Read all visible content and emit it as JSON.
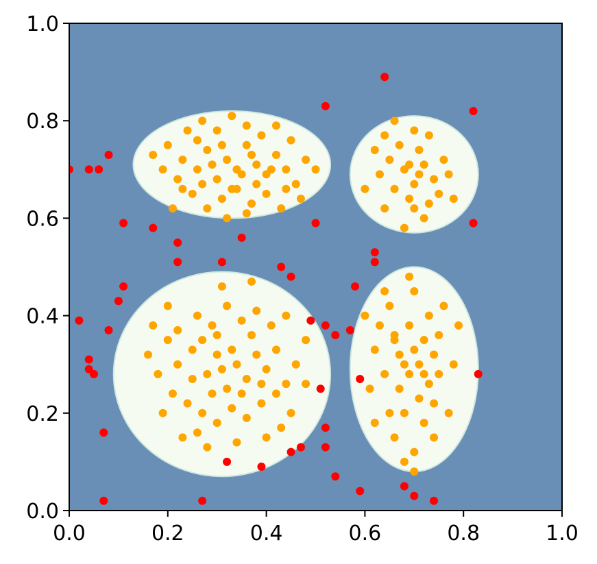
{
  "chart_data": {
    "type": "scatter",
    "xlim": [
      0.0,
      1.0
    ],
    "ylim": [
      0.0,
      1.0
    ],
    "grid": false,
    "x_ticks": [
      "0.0",
      "0.2",
      "0.4",
      "0.6",
      "0.8",
      "1.0"
    ],
    "y_ticks": [
      "0.0",
      "0.2",
      "0.4",
      "0.6",
      "0.8",
      "1.0"
    ],
    "colors": {
      "background_region": "#6a8fb6",
      "decision_region": "#f5fbf0",
      "inlier_points": "#ffa500",
      "outlier_points": "#ff0000"
    },
    "regions": [
      {
        "name": "top-left-cluster-region",
        "center": [
          0.33,
          0.71
        ],
        "radius": [
          0.2,
          0.11
        ]
      },
      {
        "name": "top-right-cluster-region",
        "center": [
          0.7,
          0.69
        ],
        "radius": [
          0.13,
          0.12
        ]
      },
      {
        "name": "bottom-left-cluster-region",
        "center": [
          0.31,
          0.28
        ],
        "radius": [
          0.22,
          0.21
        ]
      },
      {
        "name": "bottom-right-cluster-region",
        "center": [
          0.7,
          0.29
        ],
        "radius": [
          0.13,
          0.21
        ]
      }
    ],
    "series": [
      {
        "role": "inliers",
        "points": [
          [
            0.2,
            0.75
          ],
          [
            0.23,
            0.72
          ],
          [
            0.26,
            0.7
          ],
          [
            0.28,
            0.74
          ],
          [
            0.3,
            0.68
          ],
          [
            0.32,
            0.72
          ],
          [
            0.34,
            0.7
          ],
          [
            0.36,
            0.75
          ],
          [
            0.38,
            0.71
          ],
          [
            0.4,
            0.69
          ],
          [
            0.42,
            0.73
          ],
          [
            0.44,
            0.7
          ],
          [
            0.46,
            0.67
          ],
          [
            0.48,
            0.72
          ],
          [
            0.25,
            0.65
          ],
          [
            0.28,
            0.62
          ],
          [
            0.31,
            0.64
          ],
          [
            0.34,
            0.66
          ],
          [
            0.37,
            0.63
          ],
          [
            0.4,
            0.65
          ],
          [
            0.43,
            0.62
          ],
          [
            0.22,
            0.68
          ],
          [
            0.19,
            0.7
          ],
          [
            0.24,
            0.78
          ],
          [
            0.27,
            0.8
          ],
          [
            0.3,
            0.78
          ],
          [
            0.33,
            0.81
          ],
          [
            0.36,
            0.79
          ],
          [
            0.39,
            0.77
          ],
          [
            0.42,
            0.79
          ],
          [
            0.45,
            0.76
          ],
          [
            0.17,
            0.73
          ],
          [
            0.29,
            0.71
          ],
          [
            0.35,
            0.69
          ],
          [
            0.31,
            0.75
          ],
          [
            0.26,
            0.76
          ],
          [
            0.33,
            0.66
          ],
          [
            0.27,
            0.67
          ],
          [
            0.38,
            0.67
          ],
          [
            0.41,
            0.7
          ],
          [
            0.21,
            0.62
          ],
          [
            0.36,
            0.61
          ],
          [
            0.47,
            0.64
          ],
          [
            0.32,
            0.6
          ],
          [
            0.5,
            0.7
          ],
          [
            0.44,
            0.66
          ],
          [
            0.23,
            0.66
          ],
          [
            0.37,
            0.73
          ],
          [
            0.65,
            0.72
          ],
          [
            0.68,
            0.7
          ],
          [
            0.7,
            0.67
          ],
          [
            0.72,
            0.71
          ],
          [
            0.74,
            0.68
          ],
          [
            0.67,
            0.75
          ],
          [
            0.71,
            0.74
          ],
          [
            0.69,
            0.64
          ],
          [
            0.73,
            0.63
          ],
          [
            0.66,
            0.66
          ],
          [
            0.63,
            0.69
          ],
          [
            0.76,
            0.72
          ],
          [
            0.7,
            0.78
          ],
          [
            0.64,
            0.62
          ],
          [
            0.72,
            0.6
          ],
          [
            0.68,
            0.58
          ],
          [
            0.75,
            0.65
          ],
          [
            0.62,
            0.74
          ],
          [
            0.66,
            0.8
          ],
          [
            0.73,
            0.77
          ],
          [
            0.77,
            0.69
          ],
          [
            0.69,
            0.71
          ],
          [
            0.71,
            0.69
          ],
          [
            0.6,
            0.66
          ],
          [
            0.78,
            0.64
          ],
          [
            0.64,
            0.77
          ],
          [
            0.7,
            0.62
          ],
          [
            0.2,
            0.35
          ],
          [
            0.22,
            0.3
          ],
          [
            0.25,
            0.33
          ],
          [
            0.28,
            0.28
          ],
          [
            0.3,
            0.32
          ],
          [
            0.32,
            0.25
          ],
          [
            0.34,
            0.3
          ],
          [
            0.36,
            0.27
          ],
          [
            0.38,
            0.32
          ],
          [
            0.4,
            0.29
          ],
          [
            0.42,
            0.33
          ],
          [
            0.44,
            0.26
          ],
          [
            0.24,
            0.22
          ],
          [
            0.27,
            0.2
          ],
          [
            0.3,
            0.18
          ],
          [
            0.33,
            0.21
          ],
          [
            0.36,
            0.19
          ],
          [
            0.39,
            0.22
          ],
          [
            0.26,
            0.4
          ],
          [
            0.29,
            0.38
          ],
          [
            0.32,
            0.42
          ],
          [
            0.35,
            0.39
          ],
          [
            0.38,
            0.41
          ],
          [
            0.41,
            0.38
          ],
          [
            0.18,
            0.28
          ],
          [
            0.21,
            0.24
          ],
          [
            0.46,
            0.3
          ],
          [
            0.23,
            0.15
          ],
          [
            0.28,
            0.13
          ],
          [
            0.34,
            0.14
          ],
          [
            0.4,
            0.15
          ],
          [
            0.45,
            0.2
          ],
          [
            0.17,
            0.38
          ],
          [
            0.2,
            0.42
          ],
          [
            0.44,
            0.4
          ],
          [
            0.48,
            0.35
          ],
          [
            0.31,
            0.29
          ],
          [
            0.33,
            0.33
          ],
          [
            0.29,
            0.24
          ],
          [
            0.35,
            0.24
          ],
          [
            0.25,
            0.27
          ],
          [
            0.37,
            0.36
          ],
          [
            0.27,
            0.35
          ],
          [
            0.42,
            0.24
          ],
          [
            0.16,
            0.32
          ],
          [
            0.19,
            0.2
          ],
          [
            0.31,
            0.46
          ],
          [
            0.37,
            0.47
          ],
          [
            0.48,
            0.26
          ],
          [
            0.22,
            0.37
          ],
          [
            0.39,
            0.26
          ],
          [
            0.3,
            0.36
          ],
          [
            0.43,
            0.17
          ],
          [
            0.26,
            0.16
          ],
          [
            0.66,
            0.35
          ],
          [
            0.68,
            0.3
          ],
          [
            0.7,
            0.33
          ],
          [
            0.72,
            0.28
          ],
          [
            0.74,
            0.32
          ],
          [
            0.67,
            0.25
          ],
          [
            0.71,
            0.23
          ],
          [
            0.69,
            0.38
          ],
          [
            0.73,
            0.4
          ],
          [
            0.65,
            0.42
          ],
          [
            0.7,
            0.45
          ],
          [
            0.75,
            0.36
          ],
          [
            0.64,
            0.28
          ],
          [
            0.68,
            0.2
          ],
          [
            0.72,
            0.18
          ],
          [
            0.66,
            0.15
          ],
          [
            0.74,
            0.22
          ],
          [
            0.62,
            0.33
          ],
          [
            0.78,
            0.3
          ],
          [
            0.7,
            0.12
          ],
          [
            0.68,
            0.1
          ],
          [
            0.63,
            0.38
          ],
          [
            0.76,
            0.42
          ],
          [
            0.69,
            0.28
          ],
          [
            0.71,
            0.3
          ],
          [
            0.67,
            0.32
          ],
          [
            0.73,
            0.26
          ],
          [
            0.65,
            0.2
          ],
          [
            0.6,
            0.4
          ],
          [
            0.61,
            0.25
          ],
          [
            0.77,
            0.2
          ],
          [
            0.72,
            0.35
          ],
          [
            0.69,
            0.48
          ],
          [
            0.74,
            0.15
          ],
          [
            0.64,
            0.45
          ],
          [
            0.79,
            0.38
          ],
          [
            0.7,
            0.08
          ],
          [
            0.66,
            0.36
          ],
          [
            0.75,
            0.28
          ],
          [
            0.62,
            0.18
          ]
        ]
      },
      {
        "role": "outliers",
        "points": [
          [
            0.64,
            0.89
          ],
          [
            0.52,
            0.83
          ],
          [
            0.82,
            0.82
          ],
          [
            0.08,
            0.73
          ],
          [
            0.04,
            0.7
          ],
          [
            0.06,
            0.7
          ],
          [
            0.0,
            0.7
          ],
          [
            0.11,
            0.59
          ],
          [
            0.17,
            0.58
          ],
          [
            0.5,
            0.59
          ],
          [
            0.82,
            0.59
          ],
          [
            0.35,
            0.56
          ],
          [
            0.22,
            0.55
          ],
          [
            0.22,
            0.51
          ],
          [
            0.31,
            0.51
          ],
          [
            0.43,
            0.5
          ],
          [
            0.45,
            0.48
          ],
          [
            0.62,
            0.53
          ],
          [
            0.62,
            0.51
          ],
          [
            0.58,
            0.46
          ],
          [
            0.11,
            0.46
          ],
          [
            0.1,
            0.43
          ],
          [
            0.02,
            0.39
          ],
          [
            0.49,
            0.39
          ],
          [
            0.52,
            0.38
          ],
          [
            0.57,
            0.37
          ],
          [
            0.54,
            0.36
          ],
          [
            0.08,
            0.37
          ],
          [
            0.04,
            0.31
          ],
          [
            0.04,
            0.29
          ],
          [
            0.05,
            0.28
          ],
          [
            0.83,
            0.28
          ],
          [
            0.59,
            0.27
          ],
          [
            0.51,
            0.25
          ],
          [
            0.52,
            0.17
          ],
          [
            0.07,
            0.16
          ],
          [
            0.52,
            0.13
          ],
          [
            0.47,
            0.13
          ],
          [
            0.45,
            0.12
          ],
          [
            0.32,
            0.1
          ],
          [
            0.39,
            0.09
          ],
          [
            0.54,
            0.07
          ],
          [
            0.07,
            0.02
          ],
          [
            0.27,
            0.02
          ],
          [
            0.59,
            0.04
          ],
          [
            0.68,
            0.05
          ],
          [
            0.7,
            0.03
          ],
          [
            0.74,
            0.02
          ]
        ]
      }
    ]
  }
}
